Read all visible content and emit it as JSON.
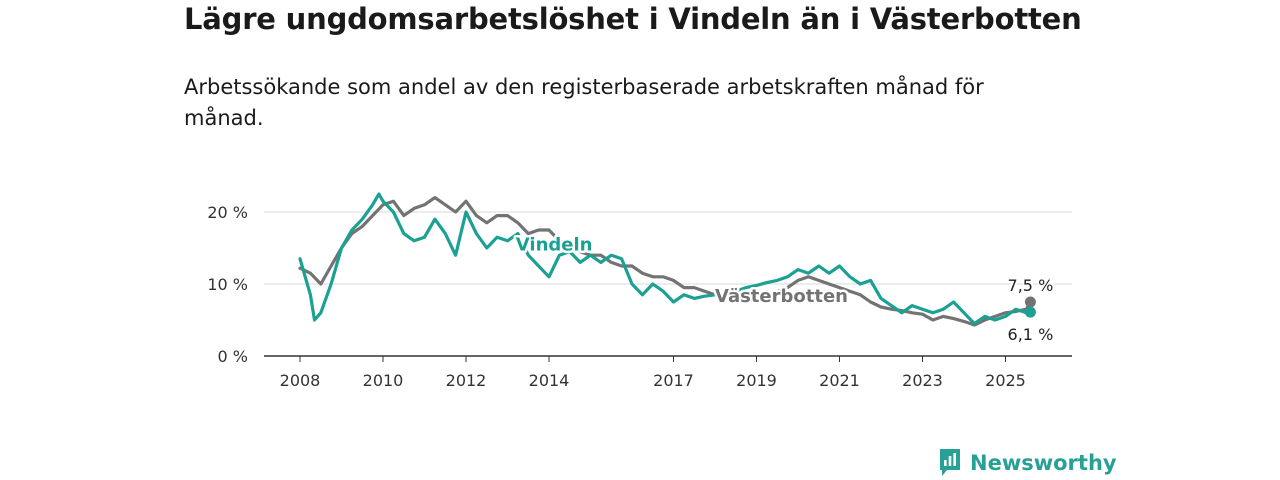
{
  "title": "Lägre ungdomsarbetslöshet i Vindeln än i Västerbotten",
  "subtitle": "Arbetssökande som andel av den registerbaserade arbetskraften månad för månad.",
  "brand": {
    "name": "Newsworthy",
    "icon": "newsworthy-logo-icon",
    "color": "#27a195"
  },
  "chart_data": {
    "type": "line",
    "ylim": [
      0,
      25
    ],
    "y_ticks": [
      {
        "value": 0,
        "label": "0 %"
      },
      {
        "value": 10,
        "label": "10 %"
      },
      {
        "value": 20,
        "label": "20 %"
      }
    ],
    "x_ticks": [
      {
        "value": 2008,
        "label": "2008"
      },
      {
        "value": 2010,
        "label": "2010"
      },
      {
        "value": 2012,
        "label": "2012"
      },
      {
        "value": 2014,
        "label": "2014"
      },
      {
        "value": 2017,
        "label": "2017"
      },
      {
        "value": 2019,
        "label": "2019"
      },
      {
        "value": 2021,
        "label": "2021"
      },
      {
        "value": 2023,
        "label": "2023"
      },
      {
        "value": 2025,
        "label": "2025"
      }
    ],
    "xlim": [
      2008,
      2026
    ],
    "grid": true,
    "series": [
      {
        "name": "Västerbotten",
        "color": "#737373",
        "end_label": "7,5 %",
        "points": [
          [
            2008.0,
            12.2
          ],
          [
            2008.25,
            11.5
          ],
          [
            2008.5,
            10.0
          ],
          [
            2008.75,
            12.5
          ],
          [
            2009.0,
            15.0
          ],
          [
            2009.25,
            17.0
          ],
          [
            2009.5,
            18.0
          ],
          [
            2009.75,
            19.5
          ],
          [
            2010.0,
            21.0
          ],
          [
            2010.25,
            21.5
          ],
          [
            2010.5,
            19.5
          ],
          [
            2010.75,
            20.5
          ],
          [
            2011.0,
            21.0
          ],
          [
            2011.25,
            22.0
          ],
          [
            2011.5,
            21.0
          ],
          [
            2011.75,
            20.0
          ],
          [
            2012.0,
            21.5
          ],
          [
            2012.25,
            19.5
          ],
          [
            2012.5,
            18.5
          ],
          [
            2012.75,
            19.5
          ],
          [
            2013.0,
            19.5
          ],
          [
            2013.25,
            18.5
          ],
          [
            2013.5,
            17.0
          ],
          [
            2013.75,
            17.5
          ],
          [
            2014.0,
            17.5
          ],
          [
            2014.25,
            16.0
          ],
          [
            2014.5,
            15.5
          ],
          [
            2014.75,
            14.5
          ],
          [
            2015.0,
            14.0
          ],
          [
            2015.25,
            14.0
          ],
          [
            2015.5,
            13.0
          ],
          [
            2015.75,
            12.5
          ],
          [
            2016.0,
            12.5
          ],
          [
            2016.25,
            11.5
          ],
          [
            2016.5,
            11.0
          ],
          [
            2016.75,
            11.0
          ],
          [
            2017.0,
            10.5
          ],
          [
            2017.25,
            9.5
          ],
          [
            2017.5,
            9.5
          ],
          [
            2017.75,
            9.0
          ],
          [
            2018.0,
            8.5
          ],
          [
            2018.25,
            8.0
          ],
          [
            2018.5,
            7.8
          ],
          [
            2018.75,
            7.6
          ],
          [
            2019.0,
            7.8
          ],
          [
            2019.25,
            8.3
          ],
          [
            2019.5,
            9.0
          ],
          [
            2019.75,
            9.5
          ],
          [
            2020.0,
            10.5
          ],
          [
            2020.25,
            11.0
          ],
          [
            2020.5,
            10.5
          ],
          [
            2020.75,
            10.0
          ],
          [
            2021.0,
            9.5
          ],
          [
            2021.25,
            9.0
          ],
          [
            2021.5,
            8.5
          ],
          [
            2021.75,
            7.5
          ],
          [
            2022.0,
            6.8
          ],
          [
            2022.25,
            6.5
          ],
          [
            2022.5,
            6.3
          ],
          [
            2022.75,
            6.0
          ],
          [
            2023.0,
            5.8
          ],
          [
            2023.25,
            5.0
          ],
          [
            2023.5,
            5.5
          ],
          [
            2023.75,
            5.2
          ],
          [
            2024.0,
            4.8
          ],
          [
            2024.25,
            4.3
          ],
          [
            2024.5,
            5.0
          ],
          [
            2024.75,
            5.5
          ],
          [
            2025.0,
            6.0
          ],
          [
            2025.25,
            6.2
          ],
          [
            2025.5,
            6.5
          ],
          [
            2025.6,
            7.5
          ]
        ]
      },
      {
        "name": "Vindeln",
        "color": "#1aa194",
        "end_label": "6,1 %",
        "points": [
          [
            2008.0,
            13.5
          ],
          [
            2008.25,
            8.5
          ],
          [
            2008.35,
            5.0
          ],
          [
            2008.5,
            6.0
          ],
          [
            2008.75,
            10.0
          ],
          [
            2009.0,
            15.0
          ],
          [
            2009.25,
            17.5
          ],
          [
            2009.5,
            19.0
          ],
          [
            2009.75,
            21.0
          ],
          [
            2009.9,
            22.5
          ],
          [
            2010.0,
            21.5
          ],
          [
            2010.25,
            20.0
          ],
          [
            2010.5,
            17.0
          ],
          [
            2010.75,
            16.0
          ],
          [
            2011.0,
            16.5
          ],
          [
            2011.25,
            19.0
          ],
          [
            2011.5,
            17.0
          ],
          [
            2011.75,
            14.0
          ],
          [
            2012.0,
            20.0
          ],
          [
            2012.25,
            17.0
          ],
          [
            2012.5,
            15.0
          ],
          [
            2012.75,
            16.5
          ],
          [
            2013.0,
            16.0
          ],
          [
            2013.25,
            17.0
          ],
          [
            2013.5,
            14.0
          ],
          [
            2013.75,
            12.5
          ],
          [
            2014.0,
            11.0
          ],
          [
            2014.25,
            14.0
          ],
          [
            2014.5,
            14.5
          ],
          [
            2014.75,
            13.0
          ],
          [
            2015.0,
            14.0
          ],
          [
            2015.25,
            13.0
          ],
          [
            2015.5,
            14.0
          ],
          [
            2015.75,
            13.5
          ],
          [
            2016.0,
            10.0
          ],
          [
            2016.25,
            8.5
          ],
          [
            2016.5,
            10.0
          ],
          [
            2016.75,
            9.0
          ],
          [
            2017.0,
            7.5
          ],
          [
            2017.25,
            8.5
          ],
          [
            2017.5,
            8.0
          ],
          [
            2017.75,
            8.3
          ],
          [
            2018.0,
            8.5
          ],
          [
            2018.25,
            8.5
          ],
          [
            2018.5,
            9.0
          ],
          [
            2018.75,
            9.5
          ],
          [
            2019.0,
            9.8
          ],
          [
            2019.25,
            10.2
          ],
          [
            2019.5,
            10.5
          ],
          [
            2019.75,
            11.0
          ],
          [
            2020.0,
            12.0
          ],
          [
            2020.25,
            11.5
          ],
          [
            2020.5,
            12.5
          ],
          [
            2020.75,
            11.5
          ],
          [
            2021.0,
            12.5
          ],
          [
            2021.25,
            11.0
          ],
          [
            2021.5,
            10.0
          ],
          [
            2021.75,
            10.5
          ],
          [
            2022.0,
            8.0
          ],
          [
            2022.25,
            7.0
          ],
          [
            2022.5,
            6.0
          ],
          [
            2022.75,
            7.0
          ],
          [
            2023.0,
            6.5
          ],
          [
            2023.25,
            6.0
          ],
          [
            2023.5,
            6.5
          ],
          [
            2023.75,
            7.5
          ],
          [
            2024.0,
            6.0
          ],
          [
            2024.25,
            4.5
          ],
          [
            2024.5,
            5.5
          ],
          [
            2024.75,
            5.0
          ],
          [
            2025.0,
            5.5
          ],
          [
            2025.25,
            6.5
          ],
          [
            2025.5,
            6.0
          ],
          [
            2025.6,
            6.1
          ]
        ]
      }
    ]
  }
}
